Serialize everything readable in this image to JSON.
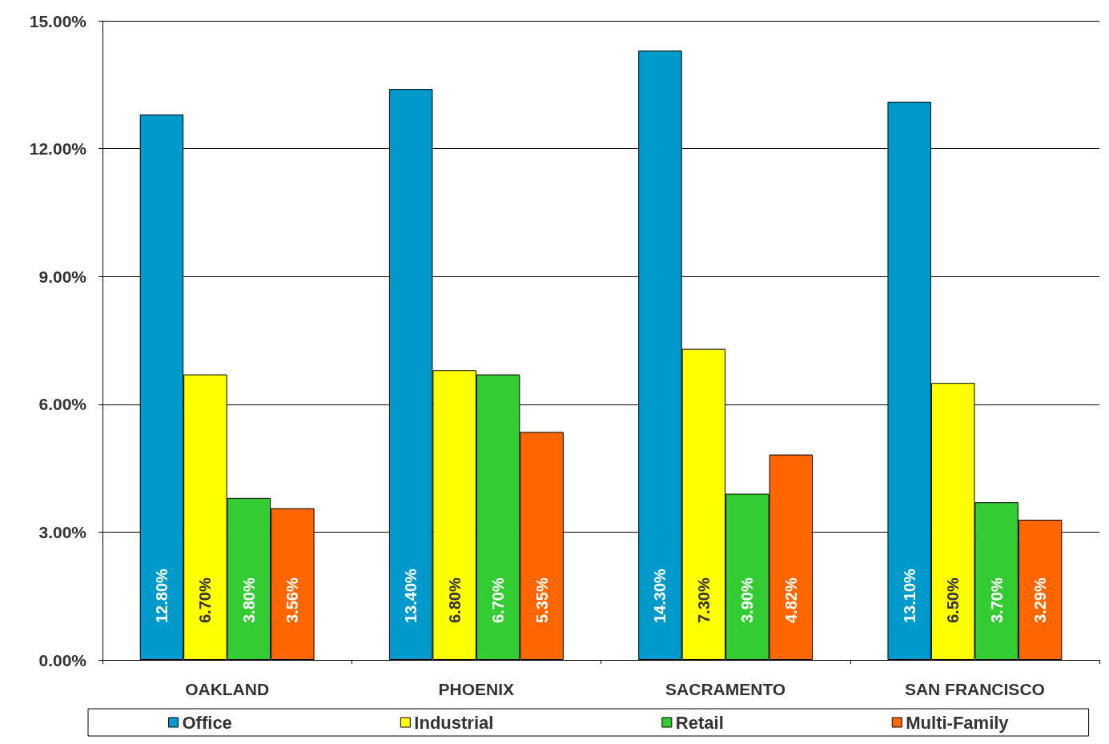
{
  "chart_data": {
    "type": "bar",
    "categories": [
      "OAKLAND",
      "PHOENIX",
      "SACRAMENTO",
      "SAN FRANCISCO"
    ],
    "series": [
      {
        "name": "Office",
        "color": "#0099cc",
        "values": [
          12.8,
          13.4,
          14.3,
          13.1
        ],
        "value_labels": [
          "12.80%",
          "13.40%",
          "14.30%",
          "13.10%"
        ]
      },
      {
        "name": "Industrial",
        "color": "#ffff00",
        "values": [
          6.7,
          6.8,
          7.3,
          6.5
        ],
        "value_labels": [
          "6.70%",
          "6.80%",
          "7.30%",
          "6.50%"
        ]
      },
      {
        "name": "Retail",
        "color": "#33cc33",
        "values": [
          3.8,
          6.7,
          3.9,
          3.7
        ],
        "value_labels": [
          "3.80%",
          "6.70%",
          "3.90%",
          "3.70%"
        ]
      },
      {
        "name": "Multi-Family",
        "color": "#ff6600",
        "values": [
          3.56,
          5.35,
          4.82,
          3.29
        ],
        "value_labels": [
          "3.56%",
          "5.35%",
          "4.82%",
          "3.29%"
        ]
      }
    ],
    "ylim": [
      0,
      15
    ],
    "yticks": [
      {
        "value": 0,
        "label": "0.00%"
      },
      {
        "value": 3,
        "label": "3.00%"
      },
      {
        "value": 6,
        "label": "6.00%"
      },
      {
        "value": 9,
        "label": "9.00%"
      },
      {
        "value": 12,
        "label": "12.00%"
      },
      {
        "value": 15,
        "label": "15.00%"
      }
    ],
    "grid": "y",
    "legend": "bottom"
  }
}
